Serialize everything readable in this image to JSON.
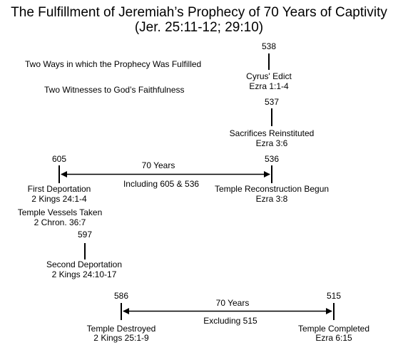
{
  "title": {
    "line1": "The Fulfillment of Jeremiah’s Prophecy of 70 Years of Captivity",
    "line2": "(Jer. 25:11-12; 29:10)"
  },
  "legend": {
    "ways": "Two Ways in which the Prophecy Was Fulfilled",
    "witnesses": "Two Witnesses to God’s Faithfulness"
  },
  "events": {
    "y538": "538",
    "cyrus": "Cyrus' Edict",
    "cyrus_ref": "Ezra 1:1-4",
    "y537": "537",
    "sacrifices": "Sacrifices Reinstituted",
    "sacrifices_ref": "Ezra 3:6",
    "y605": "605",
    "y536": "536",
    "span1_label": "70 Years",
    "span1_note": "Including 605 & 536",
    "first_dep": "First Deportation",
    "first_dep_ref": "2 Kings 24:1-4",
    "vessels": "Temple Vessels Taken",
    "vessels_ref": "2 Chron. 36:7",
    "reconstruction": "Temple Reconstruction Begun",
    "reconstruction_ref": "Ezra 3:8",
    "y597": "597",
    "second_dep": "Second Deportation",
    "second_dep_ref": "2 Kings 24:10-17",
    "y586": "586",
    "y515": "515",
    "span2_label": "70 Years",
    "span2_note": "Excluding 515",
    "destroyed": "Temple Destroyed",
    "destroyed_ref": "2 Kings 25:1-9",
    "completed": "Temple Completed",
    "completed_ref": "Ezra 6:15"
  }
}
